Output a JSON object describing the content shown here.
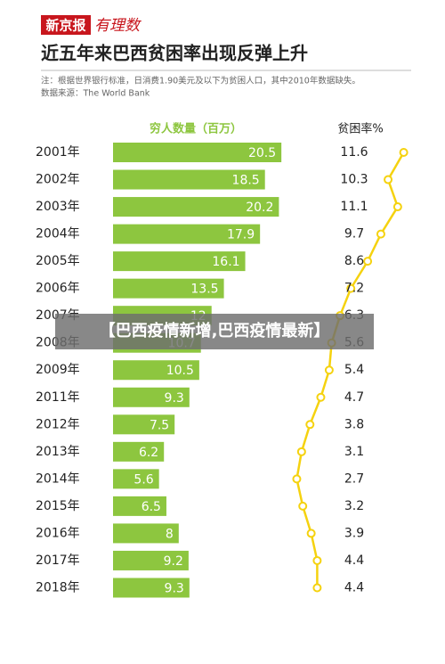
{
  "logo": {
    "brand": "新京报",
    "column": "有理数"
  },
  "banner": "【巴西疫情新增,巴西疫情最新】",
  "chart_data": {
    "type": "bar-line",
    "title": "近五年来巴西贫困率出现反弹上升",
    "notes": [
      "注：根据世界银行标准，日消费1.90美元及以下为贫困人口，其中2010年数据缺失。",
      "数据来源：The World Bank"
    ],
    "categories": [
      "2001年",
      "2002年",
      "2003年",
      "2004年",
      "2005年",
      "2006年",
      "2007年",
      "2008年",
      "2009年",
      "2011年",
      "2012年",
      "2013年",
      "2014年",
      "2015年",
      "2016年",
      "2017年",
      "2018年"
    ],
    "series": [
      {
        "name": "穷人数量（百万）",
        "color": "#8dc63f",
        "values": [
          20.5,
          18.5,
          20.2,
          17.9,
          16.1,
          13.5,
          12.0,
          10.7,
          10.5,
          9.3,
          7.5,
          6.2,
          5.6,
          6.5,
          8,
          9.2,
          9.3
        ]
      },
      {
        "name": "贫困率%",
        "color": "#f5d20f",
        "axis": "x2",
        "values": [
          11.6,
          10.3,
          11.1,
          9.7,
          8.6,
          7.2,
          6.3,
          5.6,
          5.4,
          4.7,
          3.8,
          3.1,
          2.7,
          3.2,
          3.9,
          4.4,
          4.4
        ]
      }
    ],
    "xlim": [
      0,
      22
    ],
    "x2lim": [
      2,
      12
    ]
  }
}
